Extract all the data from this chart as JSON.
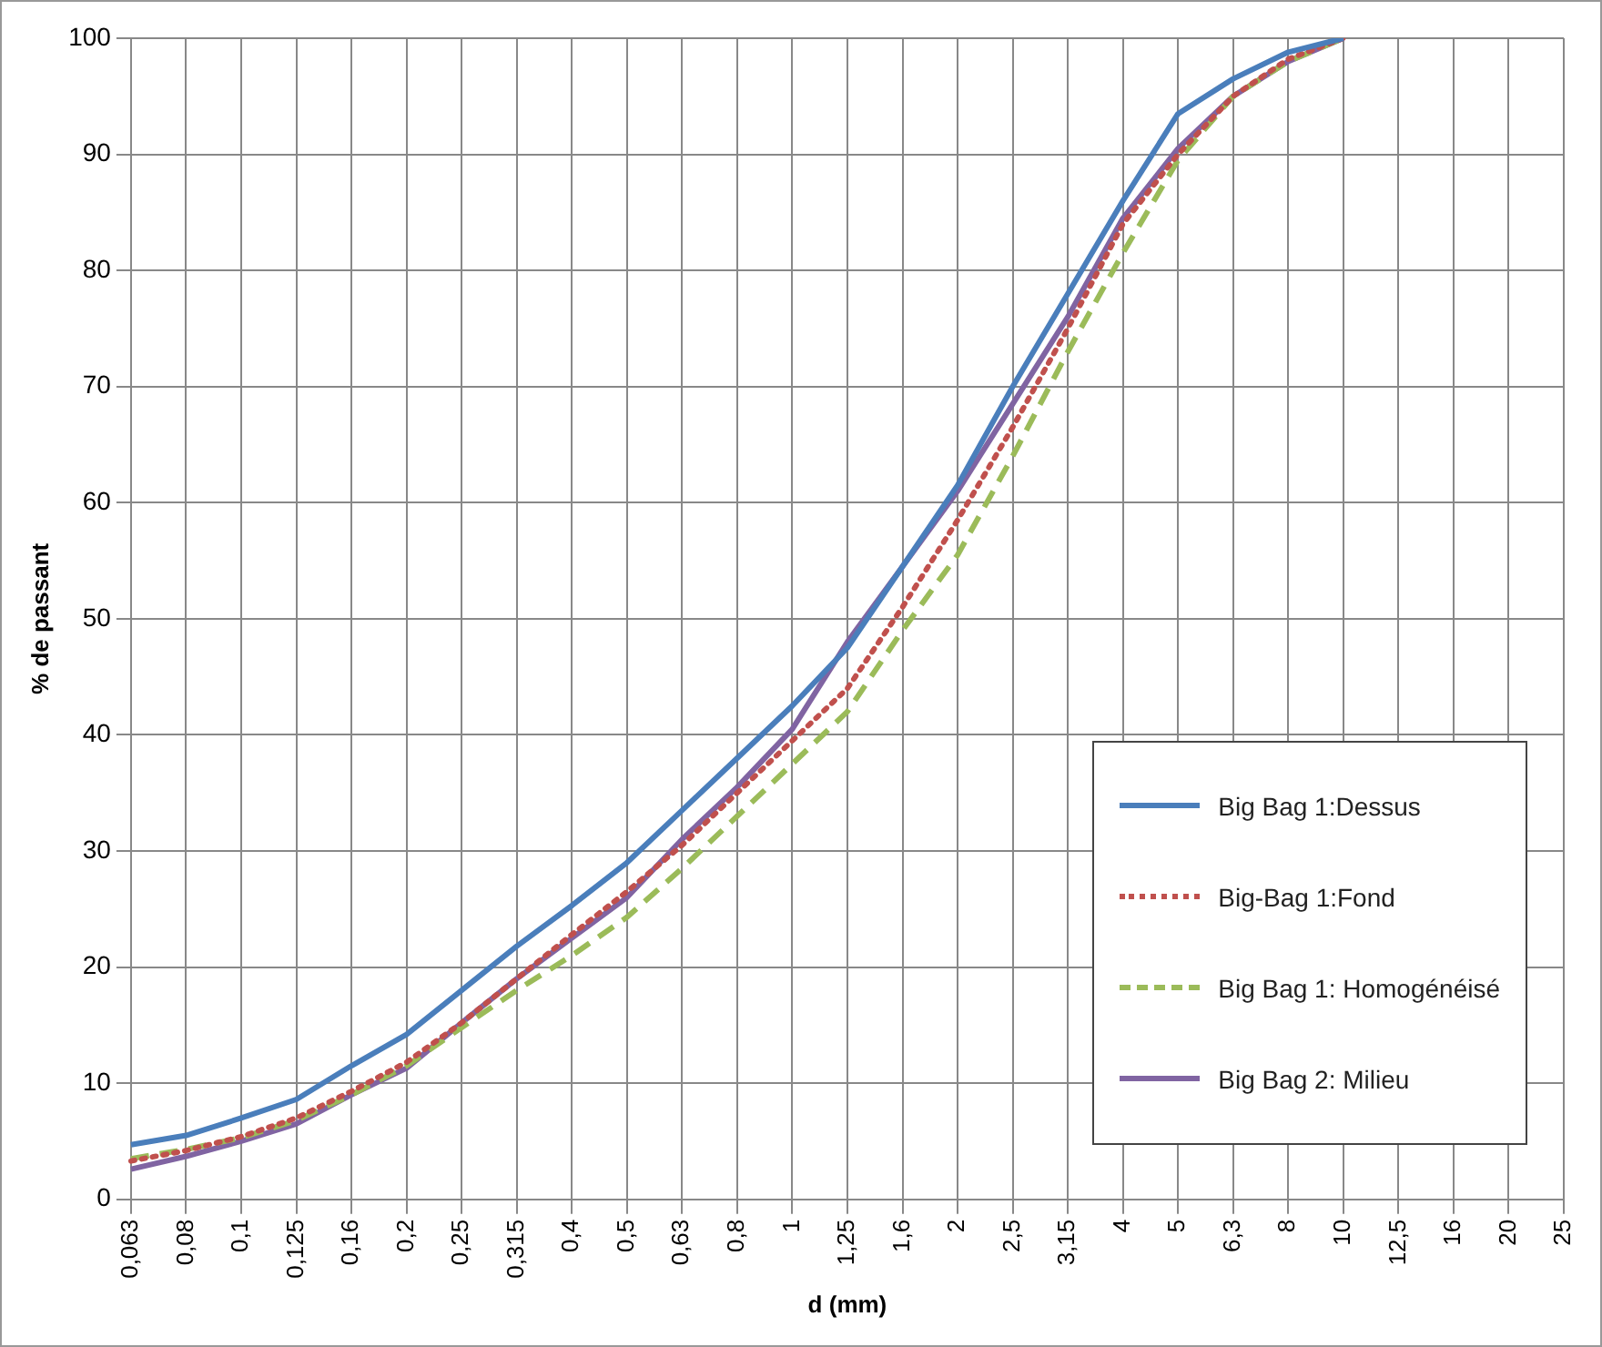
{
  "chart_data": {
    "type": "line",
    "xlabel": "d (mm)",
    "ylabel": "% de passant",
    "categories": [
      "0,063",
      "0,08",
      "0,1",
      "0,125",
      "0,16",
      "0,2",
      "0,25",
      "0,315",
      "0,4",
      "0,5",
      "0,63",
      "0,8",
      "1",
      "1,25",
      "1,6",
      "2",
      "2,5",
      "3,15",
      "4",
      "5",
      "6,3",
      "8",
      "10",
      "12,5",
      "16",
      "20",
      "25"
    ],
    "series": [
      {
        "name": "Big Bag 1:Dessus",
        "color": "#4a7ebb",
        "line_style": "solid",
        "values": [
          4.7,
          5.5,
          7,
          8.6,
          11.5,
          14.2,
          18,
          21.8,
          25.3,
          29,
          33.5,
          38,
          42.5,
          47.5,
          54.5,
          61.5,
          70,
          78,
          86,
          93.5,
          96.5,
          98.8,
          100,
          null,
          null,
          null,
          null
        ]
      },
      {
        "name": "Big-Bag 1:Fond",
        "color": "#c0504d",
        "line_style": "dotted",
        "values": [
          3.3,
          4.2,
          5.4,
          7,
          9.3,
          11.8,
          15.2,
          19,
          22.8,
          26.5,
          30.5,
          35,
          39.5,
          44,
          51,
          58.5,
          66.5,
          75,
          84,
          90,
          95,
          98.2,
          100,
          null,
          null,
          null,
          null
        ]
      },
      {
        "name": "Big Bag 1: Homogénéisé",
        "color": "#9bbb59",
        "line_style": "dashed",
        "values": [
          3.5,
          4.3,
          5.3,
          6.8,
          9,
          11.5,
          14.8,
          18,
          21,
          24.3,
          28.5,
          33,
          37.5,
          42,
          49,
          55.5,
          64,
          73,
          81.5,
          89.5,
          95,
          98,
          100,
          null,
          null,
          null,
          null
        ]
      },
      {
        "name": "Big Bag 2: Milieu",
        "color": "#8064a2",
        "line_style": "solid",
        "values": [
          2.6,
          3.7,
          5,
          6.5,
          9,
          11.3,
          15.2,
          19,
          22.5,
          26,
          31,
          35.5,
          40.5,
          48,
          54.5,
          61,
          68.5,
          76,
          84.5,
          90.5,
          95,
          98,
          100,
          null,
          null,
          null,
          null
        ]
      }
    ],
    "ylim": [
      0,
      100
    ],
    "yticks": [
      0,
      10,
      20,
      30,
      40,
      50,
      60,
      70,
      80,
      90,
      100
    ],
    "grid": true,
    "legend": "bottom right",
    "marker": "none"
  }
}
